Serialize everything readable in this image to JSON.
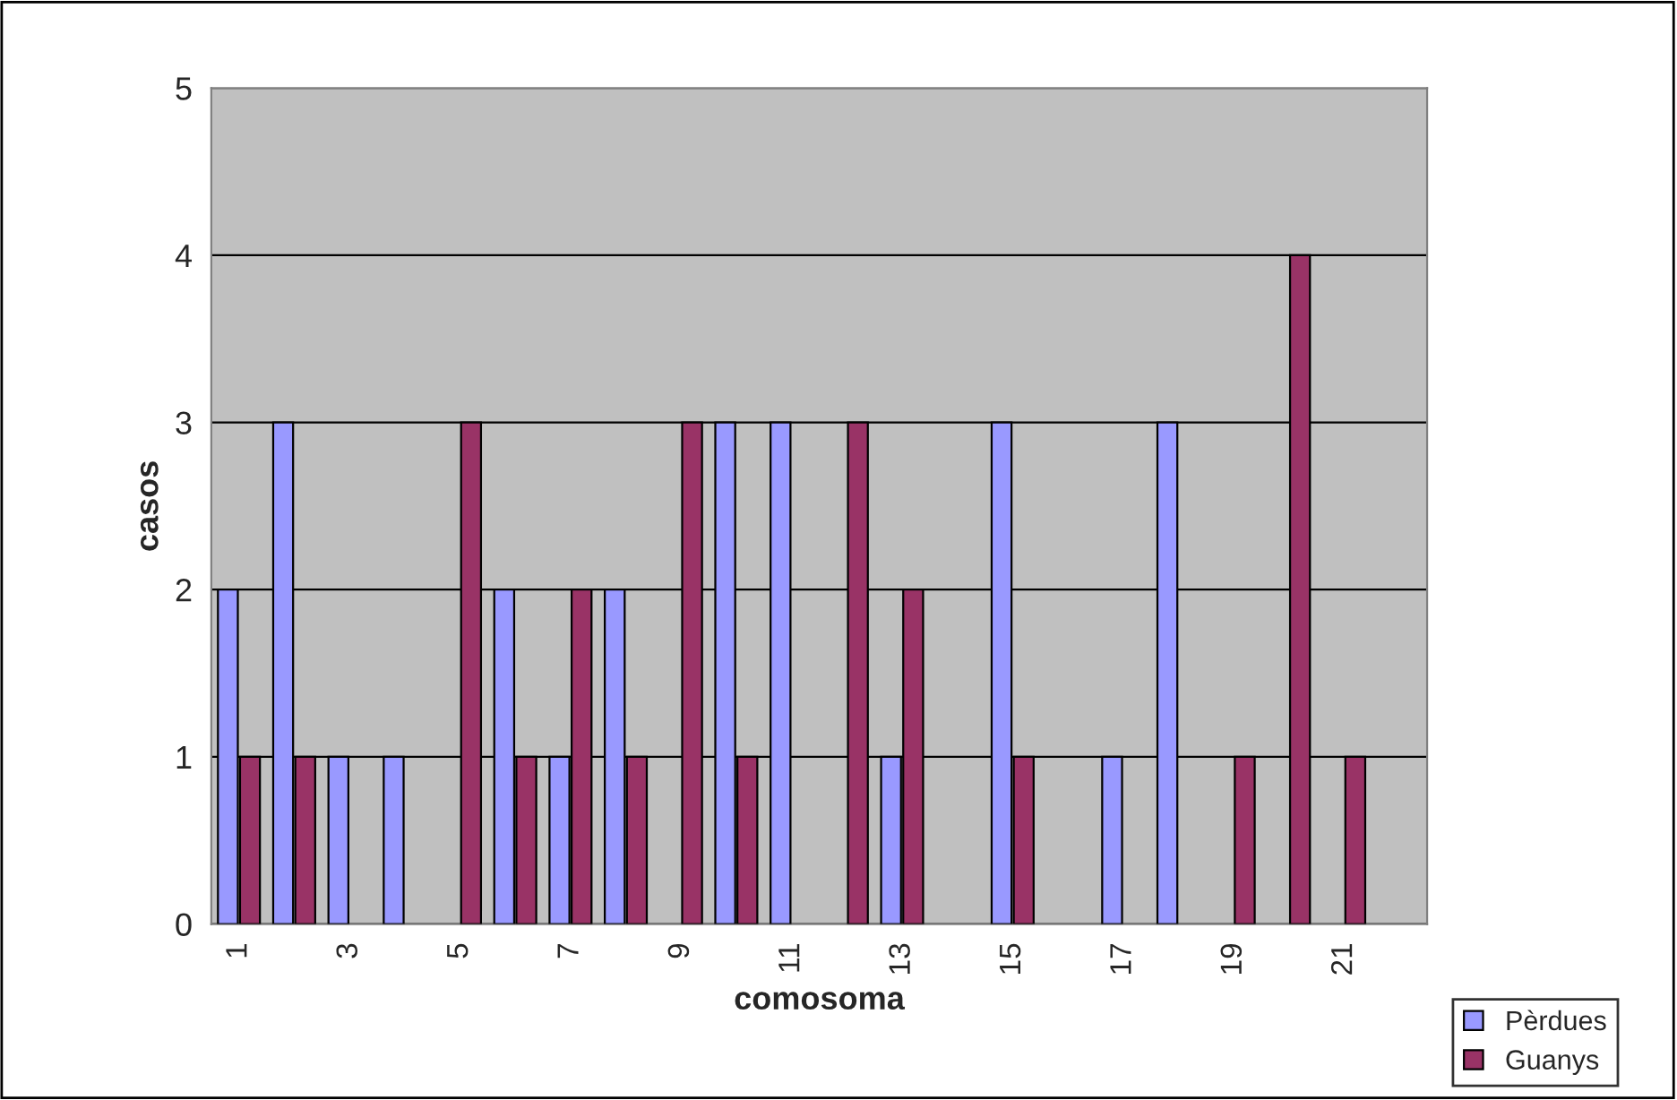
{
  "chart_data": {
    "type": "bar",
    "xlabel": "comosoma",
    "ylabel": "casos",
    "categories": [
      "1",
      null,
      "3",
      null,
      "5",
      null,
      "7",
      null,
      "9",
      null,
      "11",
      null,
      "13",
      null,
      "15",
      null,
      "17",
      null,
      "19",
      null,
      "21",
      null
    ],
    "series": [
      {
        "name": "Pèrdues",
        "color": "#9999ff",
        "values": [
          2,
          3,
          1,
          1,
          0,
          2,
          1,
          2,
          0,
          3,
          3,
          0,
          1,
          0,
          3,
          0,
          1,
          3,
          0,
          0,
          0,
          0
        ]
      },
      {
        "name": "Guanys",
        "color": "#993366",
        "values": [
          1,
          1,
          0,
          0,
          3,
          1,
          2,
          1,
          3,
          1,
          0,
          3,
          2,
          0,
          1,
          0,
          0,
          0,
          1,
          4,
          1,
          0
        ]
      }
    ],
    "ylim": [
      0,
      5
    ],
    "yticks": [
      0,
      1,
      2,
      3,
      4,
      5
    ],
    "grid": "y",
    "legend": "bottom right"
  }
}
